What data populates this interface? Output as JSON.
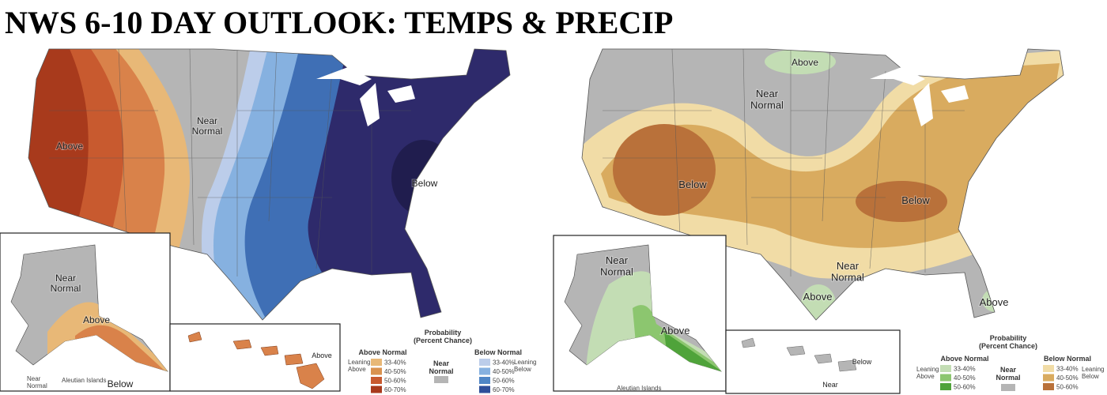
{
  "title": "NWS 6-10 DAY OUTLOOK:  TEMPS & PRECIP",
  "maps": [
    {
      "labels": [
        "Above",
        "Near Normal",
        "Below"
      ],
      "alaska": [
        "Near Normal",
        "Above"
      ],
      "aleutian": "Aleutian Islands",
      "bottom": [
        "Near Normal",
        "Below"
      ],
      "hawaii": [
        "Above"
      ],
      "legend": {
        "title": "Probability (Percent Chance)",
        "above": "Above Normal",
        "below": "Below Normal",
        "near": "Near Normal",
        "leaning_above": "Leaning Above",
        "leaning_below": "Leaning Below",
        "ranges": [
          "33-40%",
          "40-50%",
          "50-60%",
          "60-70%"
        ]
      }
    },
    {
      "labels": [
        "Above",
        "Near Normal",
        "Below",
        "Below",
        "Near Normal",
        "Above",
        "Above"
      ],
      "alaska": [
        "Near Normal",
        "Above"
      ],
      "aleutian": "Aleutian Islands",
      "hawaii": [
        "Below",
        "Near"
      ],
      "legend": {
        "title": "Probability (Percent Chance)",
        "above": "Above Normal",
        "below": "Below Normal",
        "near": "Near Normal",
        "leaning_above": "Leaning Above",
        "leaning_below": "Leaning Below",
        "ranges": [
          "33-40%",
          "40-50%",
          "50-60%"
        ]
      }
    }
  ]
}
